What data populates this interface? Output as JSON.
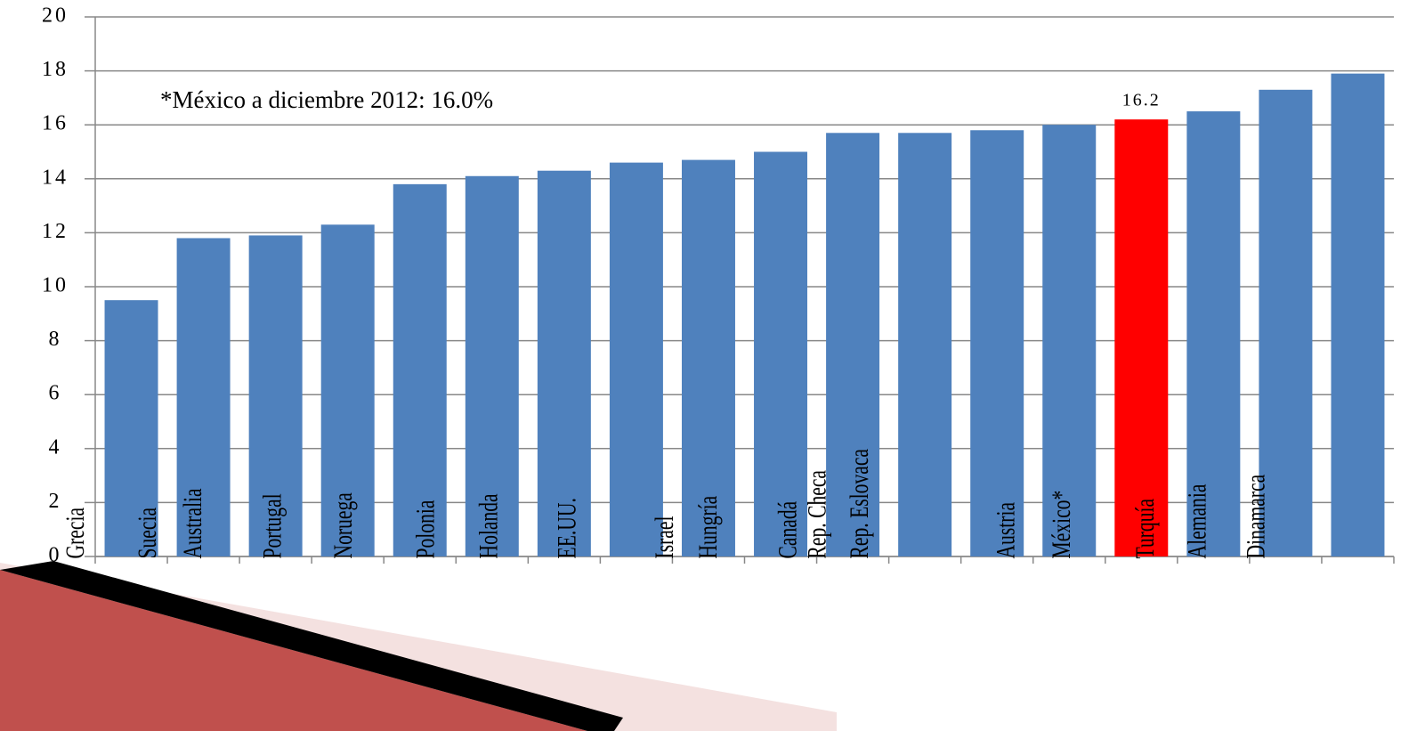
{
  "chart_data": {
    "type": "bar",
    "annotation": "*México a diciembre 2012: 16.0%",
    "categories": [
      "Grecia",
      "Suecia",
      "Australia",
      "Portugal",
      "Noruega",
      "Polonia",
      "Holanda",
      "EE.UU.",
      "Israel",
      "Hungría",
      "Canadá",
      "Rep. Checa",
      "Rep. Eslovaca",
      "Austria",
      "México*",
      "Turquía",
      "Alemania",
      "Dinamarca"
    ],
    "values": [
      9.5,
      11.8,
      11.9,
      12.3,
      13.8,
      14.1,
      14.3,
      14.6,
      14.7,
      15.0,
      15.7,
      15.7,
      15.8,
      16.0,
      16.2,
      16.5,
      17.3,
      17.9
    ],
    "value_labels": [
      null,
      null,
      null,
      null,
      null,
      null,
      null,
      null,
      null,
      null,
      null,
      null,
      null,
      null,
      "16.2",
      null,
      null,
      null
    ],
    "colors": [
      "#4f81bd",
      "#4f81bd",
      "#4f81bd",
      "#4f81bd",
      "#4f81bd",
      "#4f81bd",
      "#4f81bd",
      "#4f81bd",
      "#4f81bd",
      "#4f81bd",
      "#4f81bd",
      "#4f81bd",
      "#4f81bd",
      "#4f81bd",
      "#ff0000",
      "#4f81bd",
      "#4f81bd",
      "#4f81bd"
    ],
    "ylim": [
      0,
      20
    ],
    "yticks": [
      0,
      2,
      4,
      6,
      8,
      10,
      12,
      14,
      16,
      18,
      20
    ],
    "grid": true
  }
}
